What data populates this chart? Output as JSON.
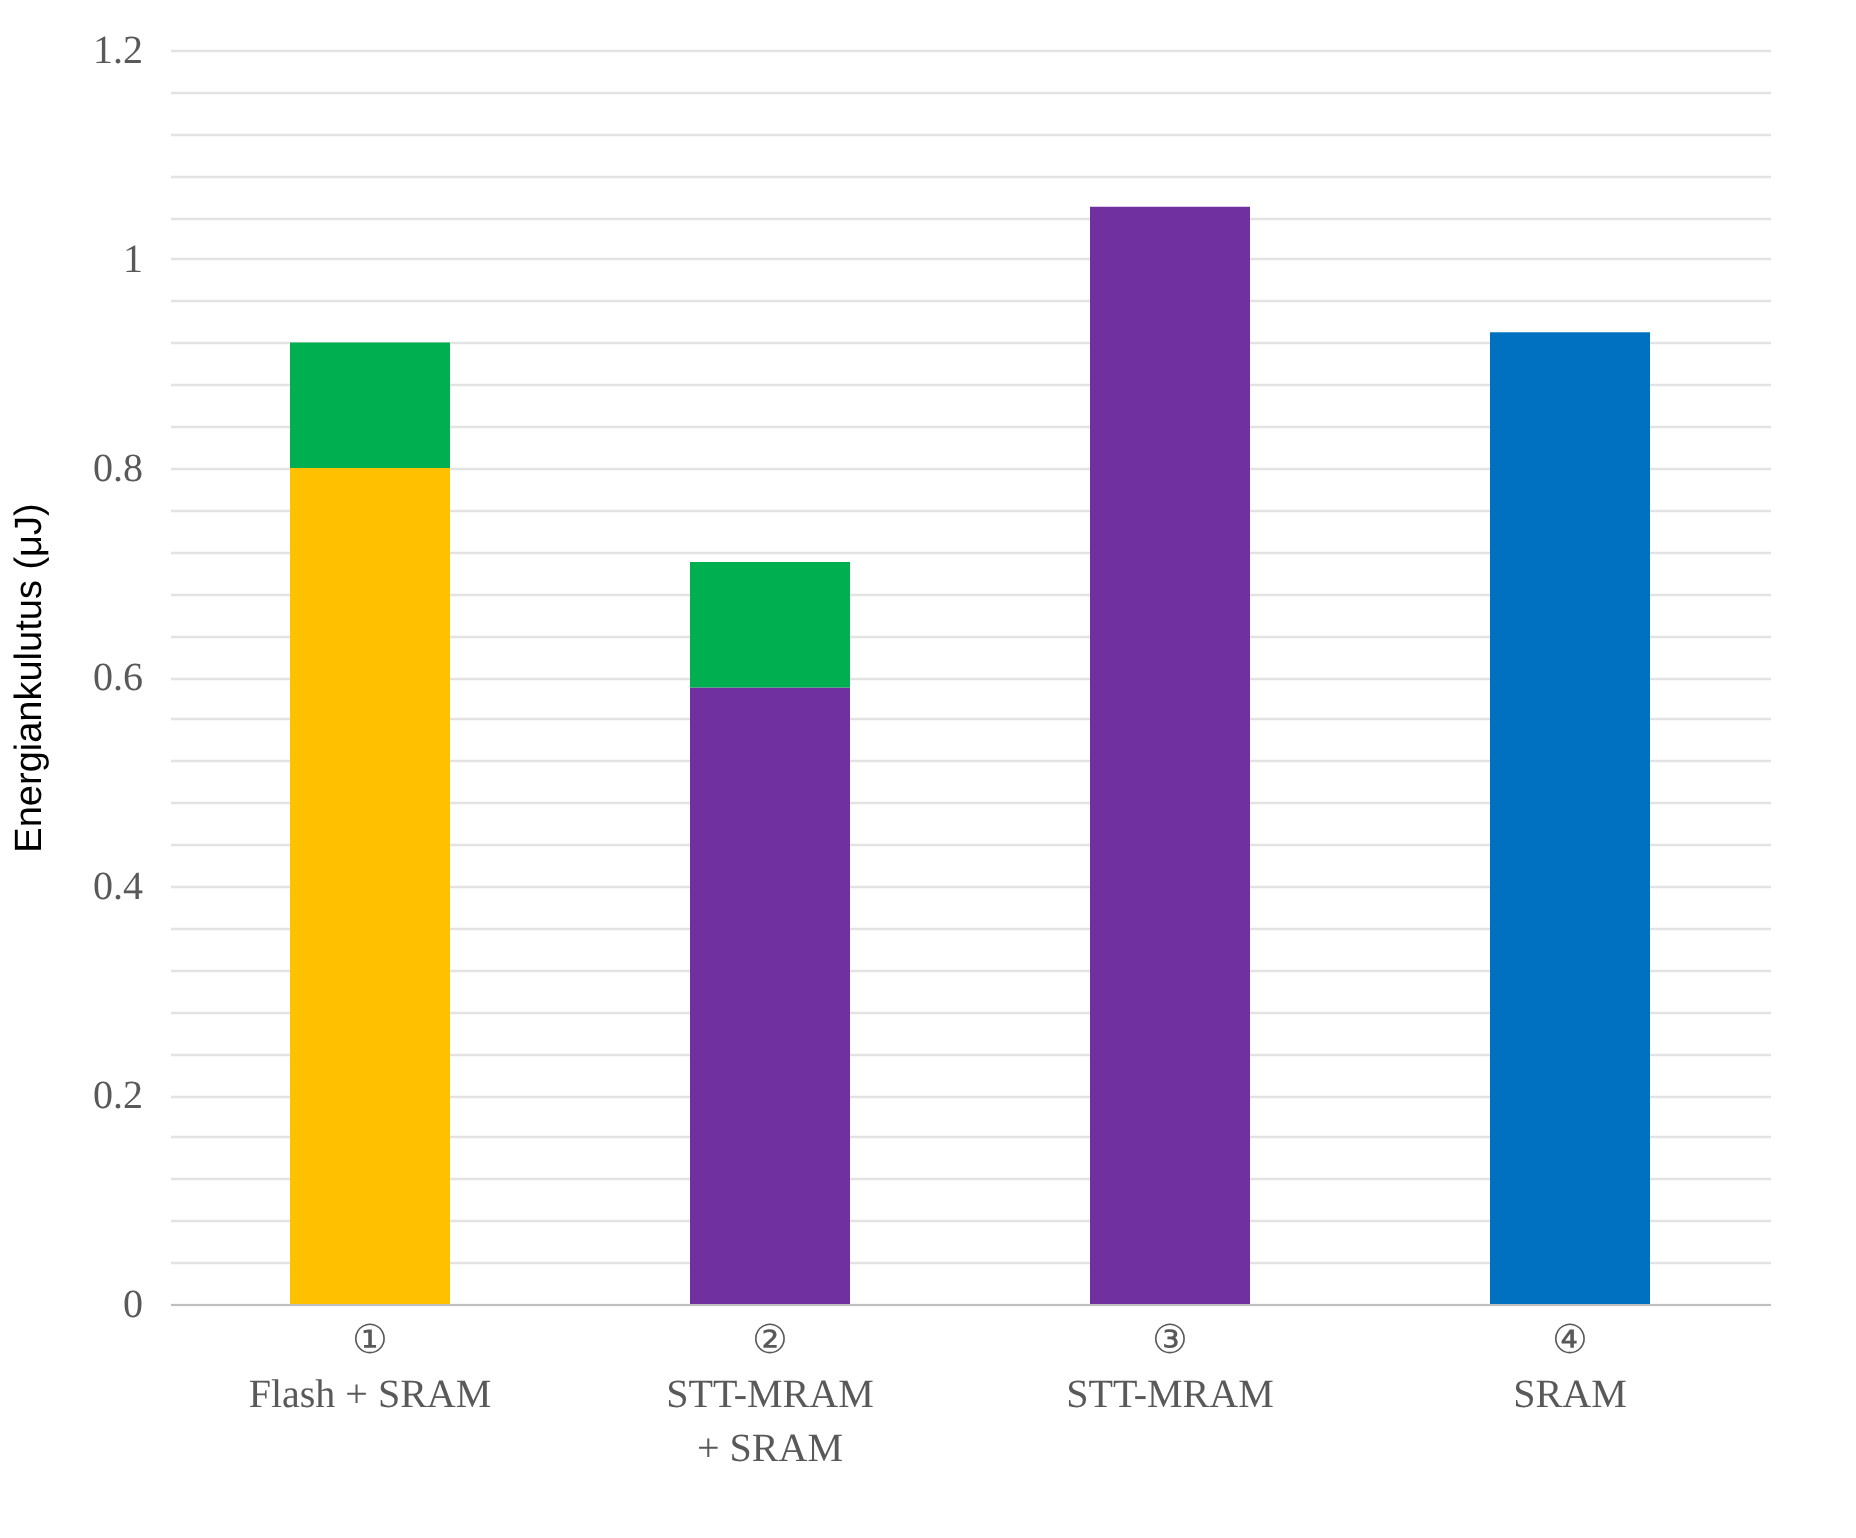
{
  "chart_data": {
    "type": "bar",
    "stacked": true,
    "ylabel": "Energiankulutus (μJ)",
    "categories": [
      "①\nFlash + SRAM",
      "②\nSTT-MRAM\n+ SRAM",
      "③\nSTT-MRAM",
      "④\nSRAM"
    ],
    "series": [
      {
        "color": "#ffc000",
        "values": [
          0.8,
          null,
          null,
          null
        ]
      },
      {
        "color": "#7030a0",
        "values": [
          null,
          0.59,
          1.05,
          null
        ]
      },
      {
        "color": "#0070c0",
        "values": [
          null,
          null,
          null,
          0.93
        ]
      },
      {
        "color": "#00b050",
        "values": [
          0.12,
          0.12,
          null,
          null
        ]
      }
    ],
    "ylim": [
      0,
      1.2
    ],
    "yticks": [
      0,
      {
        "value": 0.04,
        "label": null
      },
      {
        "value": 0.08,
        "label": null
      },
      {
        "value": 0.12,
        "label": null
      },
      {
        "value": 0.16,
        "label": null
      },
      "0.2",
      {
        "value": 0.24,
        "label": null
      },
      {
        "value": 0.28,
        "label": null
      },
      {
        "value": 0.32,
        "label": null
      },
      {
        "value": 0.36,
        "label": null
      },
      0.4,
      {
        "value": 0.44,
        "label": null
      },
      {
        "value": 0.48,
        "label": null
      },
      {
        "value": 0.52,
        "label": null
      },
      {
        "value": 0.56,
        "label": null
      },
      0.6,
      {
        "value": 0.64,
        "label": null
      },
      {
        "value": 0.68,
        "label": null
      },
      {
        "value": 0.72,
        "label": null
      },
      {
        "value": 0.76,
        "label": null
      },
      0.8,
      {
        "value": 0.84,
        "label": null
      },
      {
        "value": 0.88,
        "label": null
      },
      {
        "value": 0.92,
        "label": null
      },
      {
        "value": 0.96,
        "label": null
      },
      1,
      {
        "value": 1.04,
        "label": null
      },
      {
        "value": 1.08,
        "label": null
      },
      {
        "value": 1.12,
        "label": null
      },
      {
        "value": 1.16,
        "label": null
      },
      1.2
    ],
    "grid": true
  }
}
